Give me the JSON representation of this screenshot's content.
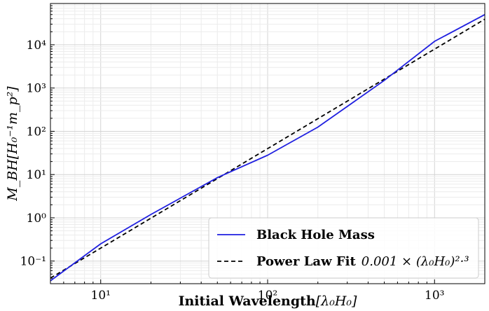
{
  "chart_data": {
    "type": "line",
    "title": "",
    "xlabel_text": "Initial Wavelength",
    "xlabel_math": "[λ₀H₀]",
    "ylabel": "M_BH[H₀⁻¹m_p²]",
    "x_scale": "log",
    "y_scale": "log",
    "xlim": [
      5,
      2000
    ],
    "ylim": [
      0.03,
      90000
    ],
    "grid": true,
    "legend_placement": "lower-right",
    "x_ticks": [
      {
        "value": 10,
        "label": "10¹"
      },
      {
        "value": 100,
        "label": "10²"
      },
      {
        "value": 1000,
        "label": "10³"
      }
    ],
    "y_ticks": [
      {
        "value": 0.1,
        "label": "10⁻¹"
      },
      {
        "value": 1,
        "label": "10⁰"
      },
      {
        "value": 10,
        "label": "10¹"
      },
      {
        "value": 100,
        "label": "10²"
      },
      {
        "value": 1000,
        "label": "10³"
      },
      {
        "value": 10000,
        "label": "10⁴"
      }
    ],
    "series": [
      {
        "name": "Black Hole Mass",
        "color": "#1f1fe0",
        "dash": "solid",
        "x": [
          5,
          10,
          20,
          50,
          100,
          200,
          500,
          1000,
          2000
        ],
        "y": [
          0.035,
          0.25,
          1.2,
          8.5,
          28,
          125,
          1500,
          12000,
          50000
        ]
      },
      {
        "name": "Power Law Fit",
        "color": "#000000",
        "dash": "dashed",
        "x": [
          5,
          2000
        ],
        "y": [
          0.0405,
          39000
        ]
      }
    ],
    "legend": [
      {
        "label": "Black Hole Mass",
        "formula": ""
      },
      {
        "label": "Power Law Fit",
        "formula": "0.001 × (λ₀H₀)²·³"
      }
    ]
  }
}
